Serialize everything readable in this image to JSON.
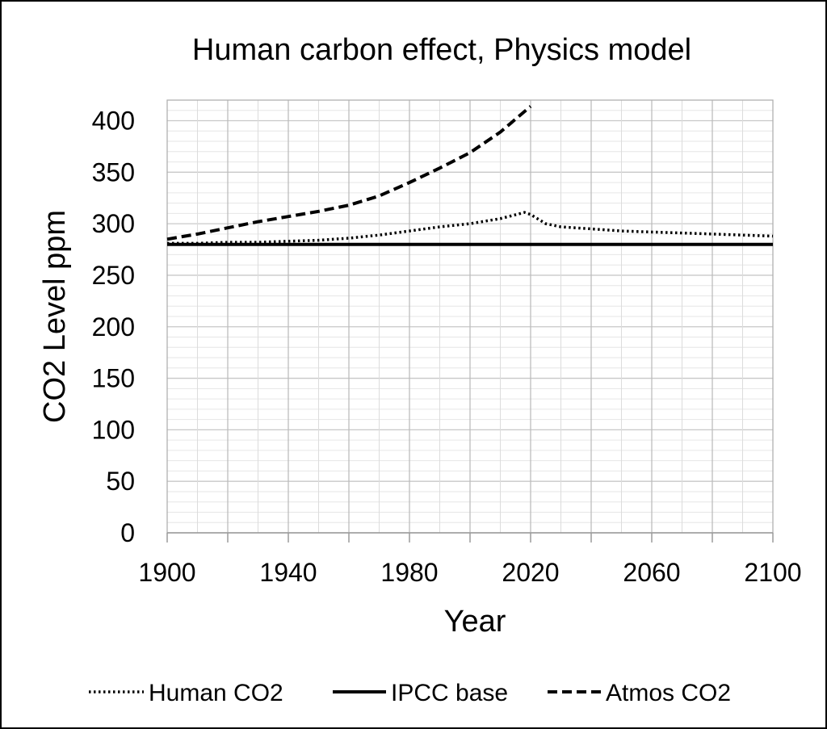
{
  "chart_data": {
    "type": "line",
    "title": "Human carbon effect, Physics model",
    "xlabel": "Year",
    "ylabel": "CO2 Level ppm",
    "xlim": [
      1900,
      2100
    ],
    "ylim": [
      0,
      420
    ],
    "xticks": [
      1900,
      1940,
      1980,
      2020,
      2060,
      2100
    ],
    "yticks": [
      0,
      50,
      100,
      150,
      200,
      250,
      300,
      350,
      400
    ],
    "grid": true,
    "legend_position": "bottom",
    "series": [
      {
        "name": "Human CO2",
        "style": "dotted",
        "color": "#000000",
        "x": [
          1900,
          1910,
          1920,
          1930,
          1940,
          1950,
          1960,
          1970,
          1980,
          1990,
          2000,
          2010,
          2018,
          2020,
          2025,
          2030,
          2040,
          2050,
          2060,
          2070,
          2080,
          2090,
          2100
        ],
        "y": [
          281,
          281,
          282,
          282,
          283,
          284,
          286,
          289,
          293,
          297,
          300,
          305,
          311,
          309,
          300,
          297,
          295,
          293,
          292,
          291,
          290,
          289,
          288
        ]
      },
      {
        "name": "IPCC base",
        "style": "solid",
        "color": "#000000",
        "x": [
          1900,
          2100
        ],
        "y": [
          280,
          280
        ]
      },
      {
        "name": "Atmos CO2",
        "style": "dashed",
        "color": "#000000",
        "x": [
          1900,
          1910,
          1920,
          1930,
          1940,
          1950,
          1960,
          1970,
          1980,
          1990,
          2000,
          2010,
          2020
        ],
        "y": [
          285,
          290,
          296,
          302,
          307,
          312,
          318,
          327,
          340,
          354,
          369,
          389,
          414
        ]
      }
    ]
  }
}
